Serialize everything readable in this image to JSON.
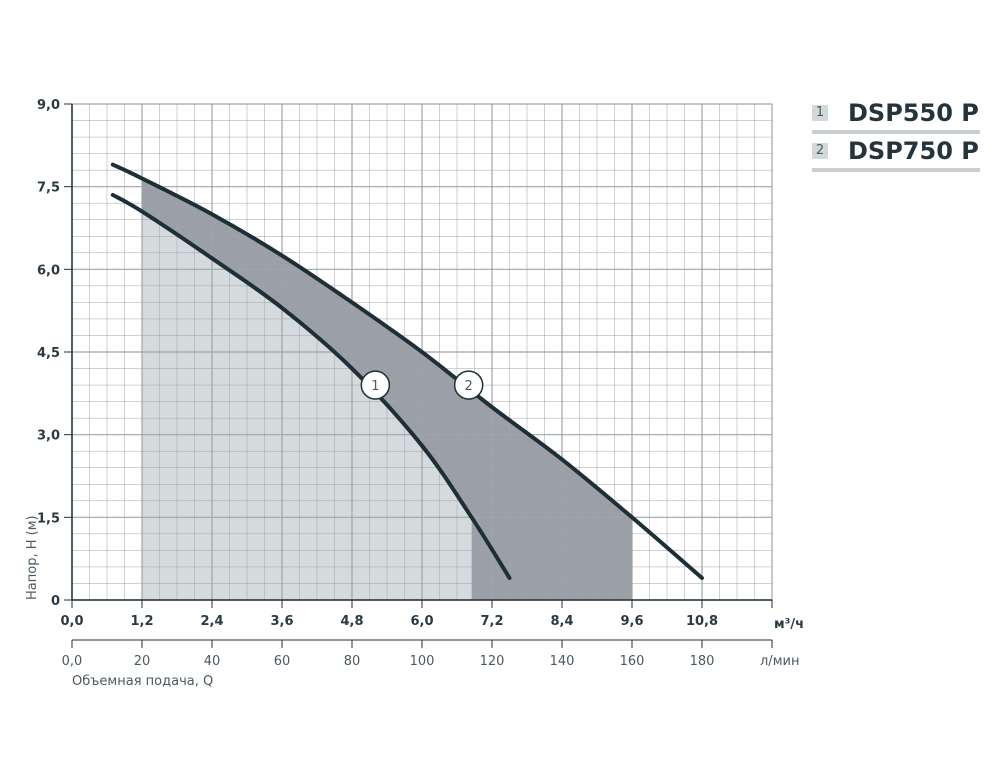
{
  "chart_data": {
    "type": "line",
    "title": "",
    "xlabel": "Объемная подача, Q",
    "ylabel": "Напор, H (м)",
    "x_unit_primary": "м³/ч",
    "x_unit_secondary": "л/мин",
    "xlim": [
      0,
      12
    ],
    "ylim": [
      0,
      9
    ],
    "grid": true,
    "x_ticks": [
      "0,0",
      "1,2",
      "2,4",
      "3,6",
      "4,8",
      "6,0",
      "7,2",
      "8,4",
      "9,6",
      "10,8"
    ],
    "x_ticks_secondary": [
      "0,0",
      "20",
      "40",
      "60",
      "80",
      "100",
      "120",
      "140",
      "160",
      "180"
    ],
    "y_ticks": [
      "0",
      "1,5",
      "3,0",
      "4,5",
      "6,0",
      "7,5",
      "9,0"
    ],
    "series": [
      {
        "name": "DSP550 P",
        "marker_label": "1",
        "marker_at": [
          5.2,
          3.9
        ],
        "x": [
          0.7,
          1.2,
          2.4,
          3.6,
          4.8,
          6.0,
          6.85,
          7.5
        ],
        "y": [
          7.35,
          7.05,
          6.2,
          5.3,
          4.2,
          2.8,
          1.5,
          0.4
        ],
        "work_range": [
          1.2,
          6.85
        ]
      },
      {
        "name": "DSP750 P",
        "marker_label": "2",
        "marker_at": [
          6.8,
          3.9
        ],
        "x": [
          0.7,
          1.2,
          2.4,
          3.6,
          4.8,
          6.0,
          7.2,
          8.4,
          9.6,
          10.8
        ],
        "y": [
          7.9,
          7.65,
          7.0,
          6.25,
          5.4,
          4.5,
          3.5,
          2.55,
          1.5,
          0.4
        ],
        "work_range": [
          1.2,
          9.6
        ]
      }
    ],
    "legend_position": "top-right"
  },
  "colors": {
    "line": "#1f2f38",
    "fill_light": "#d5dadd",
    "fill_dark": "#9aa0a6",
    "grid": "#9ea4a8"
  }
}
